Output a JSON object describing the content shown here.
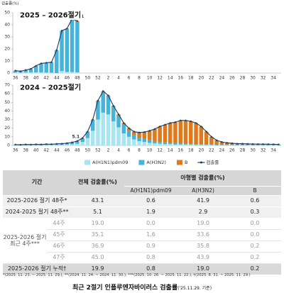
{
  "chart_data": [
    {
      "type": "bar",
      "title": "2025 – 2026절기",
      "ylabel": "검출률(%)",
      "categories": [
        36,
        null,
        38,
        null,
        40,
        null,
        42,
        null,
        44,
        null,
        46,
        null,
        48,
        null,
        50,
        null,
        52,
        null,
        2,
        null,
        4,
        null,
        6,
        null,
        8,
        null,
        10,
        null,
        12,
        null,
        14,
        null,
        16,
        null,
        18,
        null,
        20,
        null,
        22,
        null,
        24,
        null,
        26,
        null,
        28,
        null,
        30,
        null,
        32,
        null,
        34,
        null
      ],
      "ylim": [
        0,
        50
      ],
      "yticks": [
        0,
        10,
        20,
        30,
        40,
        50
      ],
      "series": [
        {
          "name": "A(H1N1)pdm09",
          "color": "#a9e5f0",
          "values": [
            0.4,
            0.3,
            0.4,
            0.5,
            0.6,
            0.5,
            0.4,
            0.3,
            0.0,
            1.6,
            0.9,
            0.8,
            0.6,
            null,
            null,
            null,
            null,
            null,
            null,
            null,
            null,
            null,
            null,
            null,
            null,
            null,
            null,
            null,
            null,
            null,
            null,
            null,
            null,
            null,
            null,
            null,
            null,
            null,
            null,
            null,
            null,
            null,
            null,
            null,
            null,
            null,
            null,
            null,
            null,
            null,
            null,
            null
          ]
        },
        {
          "name": "A(H3N2)",
          "color": "#45b4d8",
          "values": [
            1.5,
            1.1,
            2.0,
            2.9,
            5.3,
            7.4,
            8.0,
            8.6,
            19.0,
            33.6,
            35.8,
            43.9,
            41.9,
            null,
            null,
            null,
            null,
            null,
            null,
            null,
            null,
            null,
            null,
            null,
            null,
            null,
            null,
            null,
            null,
            null,
            null,
            null,
            null,
            null,
            null,
            null,
            null,
            null,
            null,
            null,
            null,
            null,
            null,
            null,
            null,
            null,
            null,
            null,
            null,
            null,
            null,
            null
          ]
        },
        {
          "name": "B",
          "color": "#de7a1c",
          "values": [
            0.1,
            0.1,
            0.1,
            0.1,
            0.1,
            0.1,
            0.1,
            0.1,
            0.0,
            0.0,
            0.2,
            0.2,
            0.6,
            null,
            null,
            null,
            null,
            null,
            null,
            null,
            null,
            null,
            null,
            null,
            null,
            null,
            null,
            null,
            null,
            null,
            null,
            null,
            null,
            null,
            null,
            null,
            null,
            null,
            null,
            null,
            null,
            null,
            null,
            null,
            null,
            null,
            null,
            null,
            null,
            null,
            null,
            null
          ]
        },
        {
          "name": "검출률",
          "type": "line",
          "color": "#1f3864",
          "label_index": 12,
          "values": [
            2.0,
            1.5,
            2.5,
            3.5,
            6.0,
            8.0,
            8.5,
            9.0,
            19.0,
            35.1,
            36.9,
            45.0,
            43.1,
            null,
            null,
            null,
            null,
            null,
            null,
            null,
            null,
            null,
            null,
            null,
            null,
            null,
            null,
            null,
            null,
            null,
            null,
            null,
            null,
            null,
            null,
            null,
            null,
            null,
            null,
            null,
            null,
            null,
            null,
            null,
            null,
            null,
            null,
            null,
            null,
            null,
            null,
            null
          ]
        }
      ]
    },
    {
      "type": "bar",
      "title": "2024 – 2025절기",
      "legend": "bottom",
      "categories": [
        36,
        null,
        38,
        null,
        40,
        null,
        42,
        null,
        44,
        null,
        46,
        null,
        48,
        null,
        50,
        null,
        52,
        null,
        2,
        null,
        4,
        null,
        6,
        null,
        8,
        null,
        10,
        null,
        12,
        null,
        14,
        null,
        16,
        null,
        18,
        null,
        20,
        null,
        22,
        null,
        24,
        null,
        26,
        null,
        28,
        null,
        30,
        null,
        32,
        null,
        34,
        null
      ],
      "ylim": [
        0,
        70
      ],
      "yticks": [
        0,
        10,
        20,
        30,
        40,
        50,
        60,
        70
      ],
      "series": [
        {
          "name": "A(H1N1)pdm09",
          "color": "#a9e5f0",
          "values": [
            0.3,
            0.2,
            0.3,
            0.3,
            0.4,
            0.3,
            0.5,
            0.5,
            0.6,
            0.7,
            1.0,
            1.3,
            1.9,
            4.0,
            8.5,
            17.0,
            30.0,
            38.0,
            36.0,
            28.0,
            21.0,
            14.0,
            10.0,
            7.0,
            5.0,
            4.0,
            3.0,
            2.5,
            2.0,
            1.5,
            1.5,
            1.0,
            1.0,
            1.0,
            1.0,
            0.5,
            0.5,
            0.5,
            0.5,
            0.3,
            0.3,
            0.3,
            0.3,
            0.2,
            0.2,
            0.2,
            0.2,
            0.2,
            0.2,
            0.2,
            0.2,
            0.2
          ]
        },
        {
          "name": "A(H3N2)",
          "color": "#45b4d8",
          "values": [
            0.6,
            0.5,
            0.8,
            0.6,
            0.8,
            0.7,
            0.9,
            0.8,
            1.1,
            1.2,
            1.5,
            2.0,
            2.9,
            4.2,
            7.2,
            12.6,
            21.5,
            24.4,
            21.2,
            17.0,
            13.6,
            10.0,
            7.0,
            5.0,
            4.0,
            3.5,
            3.0,
            2.5,
            2.0,
            2.0,
            1.5,
            1.5,
            1.5,
            1.0,
            1.0,
            1.0,
            1.0,
            0.5,
            0.5,
            0.5,
            0.4,
            0.4,
            0.4,
            0.4,
            0.5,
            0.5,
            0.5,
            0.5,
            0.6,
            0.6,
            0.6,
            0.6
          ]
        },
        {
          "name": "B",
          "color": "#de7a1c",
          "values": [
            0.1,
            0.1,
            0.1,
            0.1,
            0.1,
            0.1,
            0.1,
            0.1,
            0.1,
            0.1,
            0.1,
            0.2,
            0.3,
            0.3,
            0.3,
            0.4,
            0.5,
            0.6,
            0.8,
            1.0,
            1.4,
            2.0,
            3.0,
            4.0,
            6.0,
            8.0,
            11.0,
            14.0,
            18.0,
            20.5,
            23.0,
            24.5,
            26.5,
            27.0,
            26.0,
            24.5,
            20.5,
            15.0,
            9.0,
            5.2,
            3.3,
            2.3,
            1.8,
            1.4,
            1.3,
            1.1,
            0.9,
            0.8,
            0.7,
            0.6,
            0.5,
            0.4
          ]
        },
        {
          "name": "검출률",
          "type": "line",
          "color": "#1f3864",
          "label_index": 12,
          "values": [
            1.0,
            0.8,
            1.2,
            1.0,
            1.3,
            1.1,
            1.5,
            1.4,
            1.8,
            2.0,
            2.6,
            3.5,
            5.1,
            8.5,
            16.0,
            30.0,
            52.0,
            63.0,
            58.0,
            46.0,
            36.0,
            26.0,
            20.0,
            16.0,
            15.0,
            15.5,
            17.0,
            19.0,
            22.0,
            24.0,
            26.0,
            27.0,
            29.0,
            29.0,
            28.0,
            26.0,
            22.0,
            16.0,
            10.0,
            6.0,
            4.0,
            3.0,
            2.5,
            2.0,
            2.0,
            1.8,
            1.6,
            1.5,
            1.5,
            1.4,
            1.3,
            1.2
          ]
        }
      ]
    }
  ],
  "table": {
    "header": [
      "기간",
      "전체 검출률(%)",
      "아형별 검출률(%)"
    ],
    "subheader": [
      "A(H1N1)pdm09",
      "A(H3N2)",
      "B"
    ],
    "rows": [
      [
        "2025-2026 절기 48주*",
        "43.1",
        "0.6",
        "41.9",
        "0.6"
      ],
      [
        "2024-2025 절기 48주**",
        "5.1",
        "1.9",
        "2.9",
        "0.3"
      ]
    ],
    "group": {
      "label": "2025-2026 절기 최근 4주***",
      "rows": [
        [
          "44주",
          "19.0",
          "0.0",
          "19.0",
          "0.0"
        ],
        [
          "45주",
          "35.1",
          "1.6",
          "33.6",
          "0.0"
        ],
        [
          "46주",
          "36.9",
          "0.9",
          "35.8",
          "0.2"
        ],
        [
          "47주",
          "45.0",
          "0.8",
          "43.9",
          "0.2"
        ]
      ]
    },
    "total": [
      "2025-2026 절기 누적†",
      "19.9",
      "0.8",
      "19.0",
      "0.2"
    ]
  },
  "footnote": "*(2025. 11. 23. ~ 2025. 11. 29.), **(2024. 11. 24. ~ 2024. 11. 30.), ***(2025. 10. 26. ~ 2025. 11. 22.), †(2025. 8. 31. ~ 2025. 11. 29.)",
  "caption": {
    "main": "최근 2절기 인플루엔자바이러스 검출률",
    "date": "('25.11.29. 기준)"
  }
}
